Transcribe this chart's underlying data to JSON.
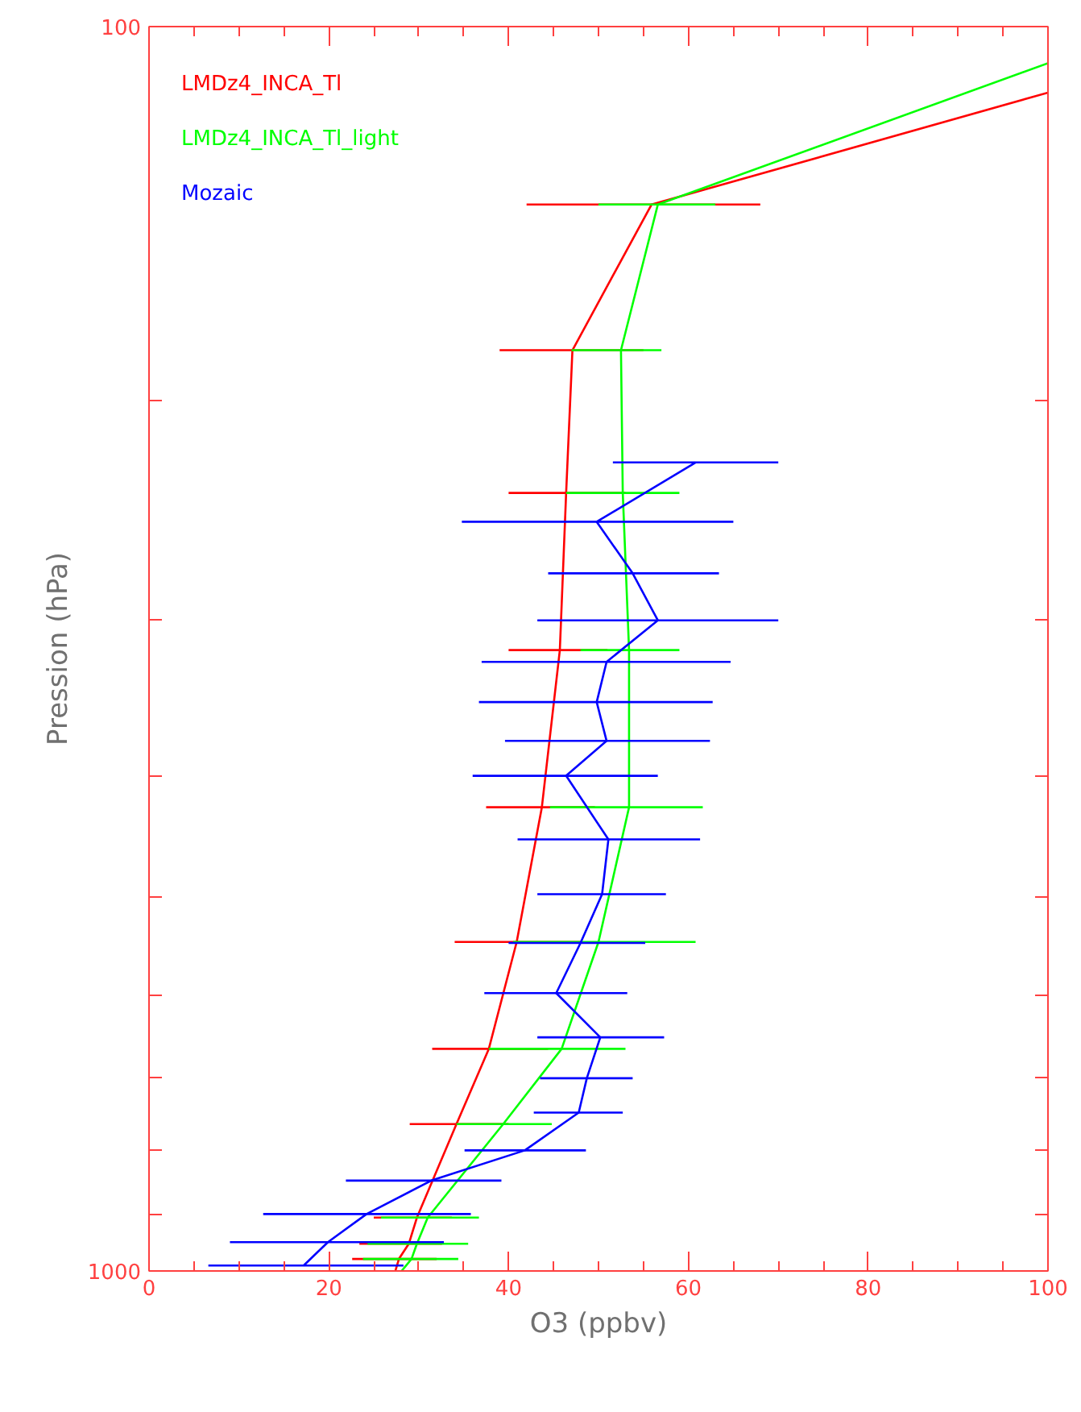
{
  "chart_data": {
    "type": "line",
    "xlabel": "O3 (ppbv)",
    "ylabel": "Pression (hPa)",
    "xlim": [
      0,
      100
    ],
    "xticks": [
      0,
      20,
      40,
      60,
      80,
      100
    ],
    "ylim": [
      1000,
      100
    ],
    "log": "y",
    "yticks": [
      100,
      {
        "value": 200,
        "label": null
      },
      {
        "value": 300,
        "label": null
      },
      {
        "value": 400,
        "label": null
      },
      {
        "value": 500,
        "label": null
      },
      {
        "value": 600,
        "label": null
      },
      {
        "value": 700,
        "label": null
      },
      {
        "value": 800,
        "label": null
      },
      {
        "value": 900,
        "label": null
      },
      1000
    ],
    "grid": false,
    "marker": "none",
    "line_style": "solid",
    "series": [
      {
        "name": "LMDz4_INCA_Tl",
        "color": "#ff0000",
        "x": [
          100,
          55.9,
          47.1,
          46.4,
          45.7,
          43.7,
          40.9,
          37.8,
          34.2,
          29.8,
          28.9,
          27.8,
          27.4
        ],
        "values": [
          113,
          139,
          182,
          237,
          317,
          424,
          544,
          663,
          762,
          906,
          951,
          978,
          1000
        ],
        "xerrors": [
          null,
          [
            42,
            68
          ],
          [
            39,
            55
          ],
          [
            40,
            53
          ],
          [
            40,
            51
          ],
          [
            37.5,
            49.6
          ],
          [
            34,
            48
          ],
          [
            31.5,
            44.4
          ],
          [
            29,
            40
          ],
          [
            25,
            33.7
          ],
          [
            23.4,
            32.6
          ],
          [
            22.6,
            32
          ],
          null
        ]
      },
      {
        "name": "LMDz4_INCA_Tl_light",
        "color": "#00ff00",
        "x": [
          100,
          56.6,
          52.5,
          52.7,
          53.4,
          53.4,
          50,
          45.9,
          39.4,
          31,
          29.8,
          29.2,
          28.1
        ],
        "values": [
          107,
          139,
          182,
          237,
          317,
          424,
          544,
          663,
          762,
          906,
          951,
          978,
          1000
        ],
        "xerrors": [
          null,
          [
            50,
            63
          ],
          [
            47,
            57
          ],
          [
            46.4,
            59
          ],
          [
            48,
            59
          ],
          [
            44.6,
            61.6
          ],
          [
            40.5,
            60.8
          ],
          [
            37.8,
            53
          ],
          [
            34.2,
            44.8
          ],
          [
            25.8,
            36.7
          ],
          [
            24.3,
            35.5
          ],
          [
            23.8,
            34.4
          ],
          null
        ]
      },
      {
        "name": "Mozaic",
        "color": "#0000ff",
        "x": [
          60.8,
          49.8,
          53.8,
          56.6,
          50.9,
          49.8,
          50.9,
          46.4,
          51.1,
          50.4,
          48,
          45.3,
          50.2,
          48.7,
          47.8,
          41.8,
          31.4,
          24.2,
          19.9,
          17.2
        ],
        "values": [
          224,
          250,
          275,
          300,
          324,
          349,
          375,
          400,
          450,
          498,
          545,
          598,
          649,
          700,
          746,
          800,
          846,
          900,
          948,
          990
        ],
        "xerrors": [
          [
            51.6,
            70
          ],
          [
            34.8,
            65
          ],
          [
            44.4,
            63.4
          ],
          [
            43.2,
            70
          ],
          [
            37,
            64.7
          ],
          [
            36.7,
            62.7
          ],
          [
            39.6,
            62.4
          ],
          [
            36,
            56.6
          ],
          [
            41,
            61.3
          ],
          [
            43.2,
            57.5
          ],
          [
            40,
            55.2
          ],
          [
            37.3,
            53.2
          ],
          [
            43.2,
            57.3
          ],
          [
            43.5,
            53.8
          ],
          [
            42.8,
            52.7
          ],
          [
            35.1,
            48.6
          ],
          [
            21.9,
            39.2
          ],
          [
            12.7,
            35.8
          ],
          [
            9,
            32.8
          ],
          [
            6.6,
            28.3
          ]
        ]
      }
    ]
  }
}
